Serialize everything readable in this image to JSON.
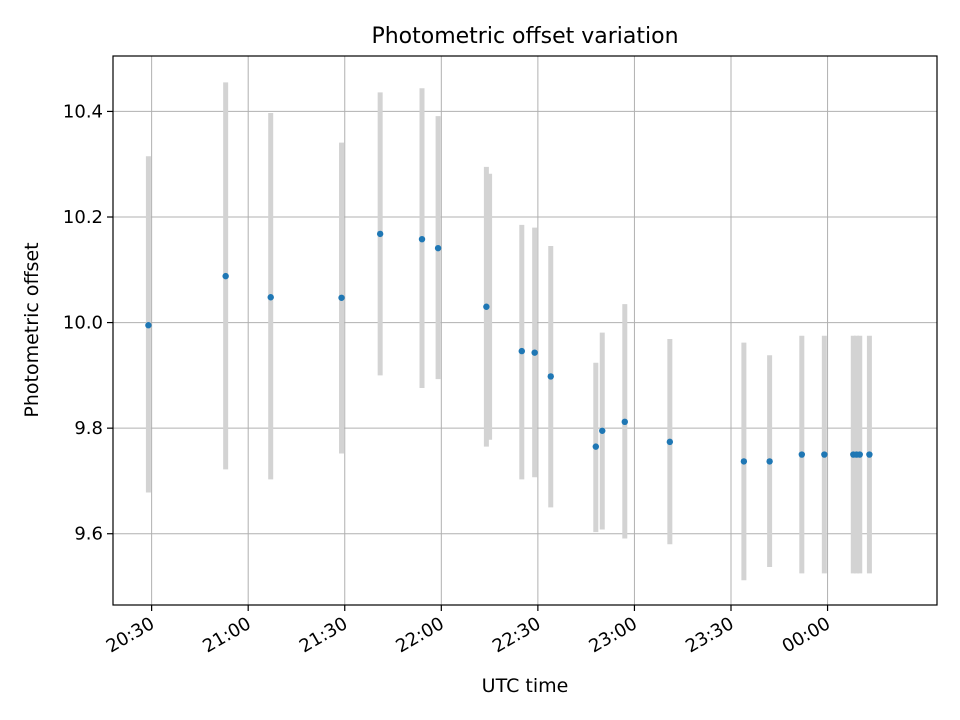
{
  "chart_data": {
    "type": "scatter",
    "title": "Photometric offset variation",
    "xlabel": "UTC time",
    "ylabel": "Photometric offset",
    "xlim": [
      "20:18",
      "00:34"
    ],
    "ylim": [
      9.465,
      10.505
    ],
    "grid": true,
    "x_ticks": [
      "20:30",
      "21:00",
      "21:30",
      "22:00",
      "22:30",
      "23:00",
      "23:30",
      "00:00"
    ],
    "y_ticks": [
      "9.6",
      "9.8",
      "10.0",
      "10.2",
      "10.4"
    ],
    "point_color": "#1f77b4",
    "errorbar_color": "#d3d3d3",
    "points": [
      {
        "time": "20:29",
        "y": 9.995,
        "low": 9.678,
        "high": 10.315
      },
      {
        "time": "20:53",
        "y": 10.088,
        "low": 9.722,
        "high": 10.455
      },
      {
        "time": "21:07",
        "y": 10.048,
        "low": 9.703,
        "high": 10.397
      },
      {
        "time": "21:29",
        "y": 10.047,
        "low": 9.752,
        "high": 10.341
      },
      {
        "time": "21:41",
        "y": 10.168,
        "low": 9.9,
        "high": 10.436
      },
      {
        "time": "21:54",
        "y": 10.158,
        "low": 9.876,
        "high": 10.444
      },
      {
        "time": "21:59",
        "y": 10.141,
        "low": 9.893,
        "high": 10.391
      },
      {
        "time": "22:14",
        "y": 10.03,
        "low": 9.765,
        "high": 10.295
      },
      {
        "time": "22:15",
        "y": null,
        "low": 9.778,
        "high": 10.282
      },
      {
        "time": "22:25",
        "y": 9.946,
        "low": 9.703,
        "high": 10.185
      },
      {
        "time": "22:29",
        "y": 9.943,
        "low": 9.707,
        "high": 10.18
      },
      {
        "time": "22:34",
        "y": 9.898,
        "low": 9.65,
        "high": 10.145
      },
      {
        "time": "22:48",
        "y": 9.765,
        "low": 9.603,
        "high": 9.924
      },
      {
        "time": "22:50",
        "y": 9.795,
        "low": 9.608,
        "high": 9.981
      },
      {
        "time": "22:57",
        "y": 9.812,
        "low": 9.591,
        "high": 10.035
      },
      {
        "time": "23:11",
        "y": 9.774,
        "low": 9.58,
        "high": 9.969
      },
      {
        "time": "23:34",
        "y": 9.737,
        "low": 9.512,
        "high": 9.962
      },
      {
        "time": "23:42",
        "y": 9.737,
        "low": 9.537,
        "high": 9.938
      },
      {
        "time": "23:52",
        "y": 9.75,
        "low": 9.525,
        "high": 9.975
      },
      {
        "time": "23:59",
        "y": 9.75,
        "low": 9.525,
        "high": 9.975
      },
      {
        "time": "00:08",
        "y": 9.75,
        "low": 9.525,
        "high": 9.975
      },
      {
        "time": "00:09",
        "y": 9.75,
        "low": 9.525,
        "high": 9.975
      },
      {
        "time": "00:10",
        "y": 9.75,
        "low": 9.525,
        "high": 9.975
      },
      {
        "time": "00:13",
        "y": 9.75,
        "low": 9.525,
        "high": 9.975
      }
    ]
  }
}
